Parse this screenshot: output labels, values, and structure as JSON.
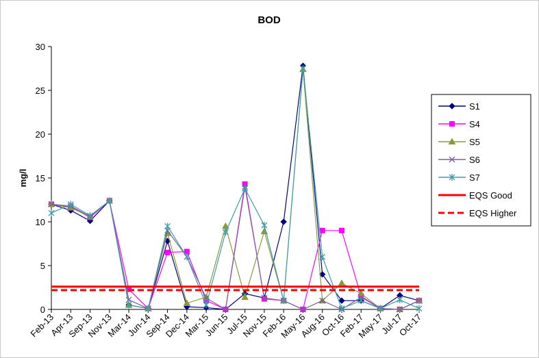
{
  "chart_data": {
    "type": "line",
    "title": "BOD",
    "xlabel": "",
    "ylabel": "mg/l",
    "ylim": [
      0,
      30
    ],
    "yticks": [
      0,
      5,
      10,
      15,
      20,
      25,
      30
    ],
    "grid": false,
    "legend_position": "right",
    "categories": [
      "Feb-13",
      "Apr-13",
      "Sep-13",
      "Nov-13",
      "Mar-14",
      "Jun-14",
      "Sep-14",
      "Dec-14",
      "Mar-15",
      "Jun-15",
      "Jul-15",
      "Nov-15",
      "Feb-16",
      "May-16",
      "Aug-16",
      "Oct-16",
      "Feb-17",
      "May-17",
      "Jul-17",
      "Oct-17"
    ],
    "series": [
      {
        "name": "S1",
        "color": "#000080",
        "marker": "diamond",
        "dash": false,
        "values": [
          12.0,
          11.3,
          10.1,
          12.4,
          0.5,
          0.1,
          7.8,
          0.3,
          0.2,
          0.0,
          1.8,
          1.3,
          10.0,
          27.8,
          4.0,
          1.0,
          1.0,
          0.1,
          1.6,
          1.0
        ]
      },
      {
        "name": "S4",
        "color": "#ff00ff",
        "marker": "square",
        "dash": false,
        "values": [
          12.0,
          11.7,
          10.5,
          12.4,
          2.3,
          0.1,
          6.5,
          6.6,
          1.0,
          0.0,
          14.3,
          1.2,
          1.0,
          0.0,
          9.0,
          9.0,
          1.5,
          0.1,
          0.0,
          1.0
        ]
      },
      {
        "name": "S5",
        "color": "#8a9a3a",
        "marker": "triangle",
        "dash": false,
        "values": [
          12.0,
          11.6,
          10.6,
          12.4,
          0.5,
          0.1,
          8.7,
          0.7,
          1.4,
          9.5,
          1.4,
          8.9,
          1.0,
          27.4,
          1.0,
          3.0,
          1.8,
          0.1,
          0.0,
          1.0
        ]
      },
      {
        "name": "S6",
        "color": "#7b5fa0",
        "marker": "x",
        "dash": false,
        "values": [
          12.0,
          11.8,
          10.6,
          12.4,
          1.1,
          0.1,
          9.0,
          6.0,
          1.3,
          0.0,
          14.0,
          1.3,
          1.0,
          0.0,
          1.0,
          0.0,
          1.4,
          0.1,
          0.0,
          1.0
        ]
      },
      {
        "name": "S7",
        "color": "#3b9ea8",
        "marker": "star",
        "dash": false,
        "values": [
          11.0,
          12.0,
          10.7,
          12.4,
          0.5,
          0.1,
          9.5,
          6.0,
          0.5,
          8.8,
          13.8,
          9.6,
          1.0,
          27.5,
          6.0,
          0.1,
          1.0,
          0.1,
          1.1,
          0.1
        ]
      },
      {
        "name": "EQS Good",
        "color": "#ff0000",
        "marker": "none",
        "dash": false,
        "values": [
          2.6,
          2.6,
          2.6,
          2.6,
          2.6,
          2.6,
          2.6,
          2.6,
          2.6,
          2.6,
          2.6,
          2.6,
          2.6,
          2.6,
          2.6,
          2.6,
          2.6,
          2.6,
          2.6,
          2.6
        ]
      },
      {
        "name": "EQS Higher",
        "color": "#ff0000",
        "marker": "none",
        "dash": true,
        "values": [
          2.2,
          2.2,
          2.2,
          2.2,
          2.2,
          2.2,
          2.2,
          2.2,
          2.2,
          2.2,
          2.2,
          2.2,
          2.2,
          2.2,
          2.2,
          2.2,
          2.2,
          2.2,
          2.2,
          2.2
        ]
      }
    ]
  }
}
